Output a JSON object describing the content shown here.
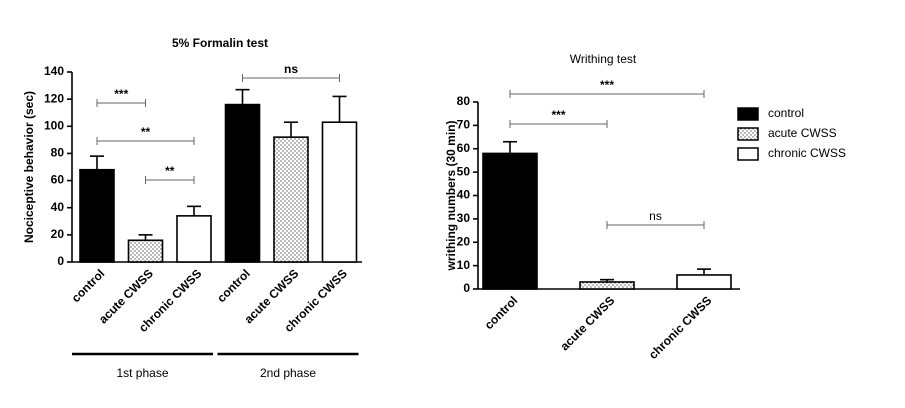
{
  "chart_data": [
    {
      "type": "bar",
      "title": "5% Formalin test",
      "y_label": "Nociceptive behavior (sec)",
      "categories": [
        "control",
        "acute CWSS",
        "chronic CWSS",
        "control",
        "acute CWSS",
        "chronic CWSS"
      ],
      "values": [
        68,
        16,
        34,
        116,
        92,
        103
      ],
      "errors": [
        10,
        4,
        7,
        11,
        11,
        19
      ],
      "fills": [
        "solid",
        "dotted",
        "open",
        "solid",
        "dotted",
        "open"
      ],
      "group_labels": [
        "1st phase",
        "2nd phase"
      ],
      "annotations": [
        "***",
        "**",
        "**",
        "ns"
      ],
      "ylim": [
        0,
        140
      ],
      "yticks": [
        0,
        20,
        40,
        60,
        80,
        100,
        120,
        140
      ]
    },
    {
      "type": "bar",
      "title": "Writhing test",
      "y_label": "writhing numbers (30 min)",
      "categories": [
        "control",
        "acute CWSS",
        "chronic CWSS"
      ],
      "values": [
        58,
        3,
        6
      ],
      "errors": [
        5,
        1,
        2.5
      ],
      "fills": [
        "solid",
        "dotted",
        "open"
      ],
      "legend": [
        "control",
        "acute CWSS",
        "chronic CWSS"
      ],
      "annotations": [
        "***",
        "***",
        "ns"
      ],
      "ylim": [
        0,
        80
      ],
      "yticks": [
        0,
        10,
        20,
        30,
        40,
        50,
        60,
        70,
        80
      ]
    }
  ]
}
